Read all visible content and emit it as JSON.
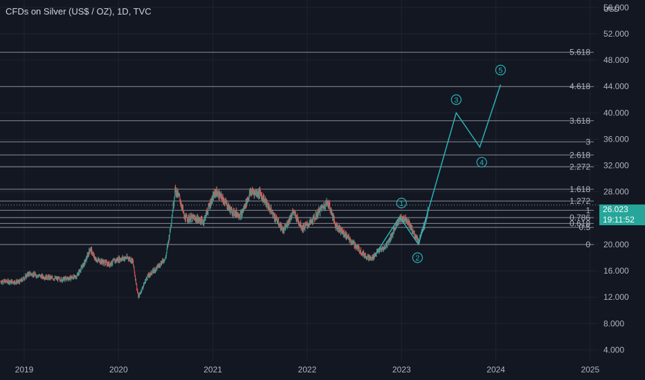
{
  "header": {
    "symbol_title": "CFDs on Silver (US$ / OZ), 1D, TVC",
    "currency": "USD"
  },
  "last_price": {
    "price": "26.023",
    "countdown": "19:11:52"
  },
  "colors": {
    "background": "#131722",
    "grid": "#1f2430",
    "fib_line": "#b2b5be",
    "wave": "#2ab3b8",
    "candle_up": "#26a69a",
    "candle_down": "#ef5350",
    "price_tag": "#26a69a"
  },
  "chart_data": {
    "type": "candlestick",
    "title": "CFDs on Silver (US$ / OZ), 1D, TVC",
    "ylabel": "USD",
    "ylim": [
      2.8,
      58.4
    ],
    "xlim": [
      2018.75,
      2025.1
    ],
    "x_ticks": [
      "2019",
      "2020",
      "2021",
      "2022",
      "2023",
      "2024",
      "2025"
    ],
    "y_ticks": [
      "4.000",
      "8.000",
      "12.000",
      "16.000",
      "20.000",
      "24.000",
      "28.000",
      "32.000",
      "36.000",
      "40.000",
      "44.000",
      "48.000",
      "52.000",
      "56.000"
    ],
    "y_tick_values": [
      4,
      8,
      12,
      16,
      20,
      24,
      28,
      32,
      36,
      40,
      44,
      48,
      52,
      56
    ],
    "price_path": [
      [
        2018.75,
        14.4
      ],
      [
        2018.95,
        14.3
      ],
      [
        2019.05,
        15.6
      ],
      [
        2019.2,
        15.1
      ],
      [
        2019.4,
        14.7
      ],
      [
        2019.55,
        15.1
      ],
      [
        2019.65,
        17.5
      ],
      [
        2019.7,
        19.4
      ],
      [
        2019.75,
        17.8
      ],
      [
        2019.9,
        17.0
      ],
      [
        2020.0,
        17.8
      ],
      [
        2020.1,
        18.0
      ],
      [
        2020.15,
        17.5
      ],
      [
        2020.21,
        12.0
      ],
      [
        2020.3,
        15.0
      ],
      [
        2020.4,
        16.4
      ],
      [
        2020.5,
        18.0
      ],
      [
        2020.55,
        22.5
      ],
      [
        2020.6,
        28.3
      ],
      [
        2020.65,
        27.0
      ],
      [
        2020.7,
        24.0
      ],
      [
        2020.8,
        24.0
      ],
      [
        2020.9,
        23.5
      ],
      [
        2020.97,
        26.2
      ],
      [
        2021.03,
        28.0
      ],
      [
        2021.1,
        27.0
      ],
      [
        2021.2,
        25.0
      ],
      [
        2021.3,
        24.5
      ],
      [
        2021.4,
        28.0
      ],
      [
        2021.5,
        27.8
      ],
      [
        2021.6,
        25.5
      ],
      [
        2021.75,
        22.0
      ],
      [
        2021.85,
        25.0
      ],
      [
        2021.95,
        22.5
      ],
      [
        2022.05,
        23.5
      ],
      [
        2022.15,
        25.5
      ],
      [
        2022.22,
        26.5
      ],
      [
        2022.3,
        23.0
      ],
      [
        2022.4,
        21.5
      ],
      [
        2022.5,
        20.0
      ],
      [
        2022.6,
        18.5
      ],
      [
        2022.68,
        17.8
      ],
      [
        2022.75,
        19.0
      ],
      [
        2022.82,
        19.5
      ],
      [
        2022.9,
        21.5
      ],
      [
        2022.97,
        23.8
      ],
      [
        2023.05,
        24.0
      ],
      [
        2023.12,
        22.0
      ],
      [
        2023.18,
        20.5
      ],
      [
        2023.22,
        22.0
      ],
      [
        2023.28,
        25.0
      ]
    ],
    "fib_levels": [
      {
        "label": "0",
        "value": 20.0
      },
      {
        "label": "0.5",
        "value": 22.6
      },
      {
        "label": "0.618",
        "value": 23.2
      },
      {
        "label": "0.786",
        "value": 24.1
      },
      {
        "label": "1",
        "value": 25.2
      },
      {
        "label": "1.272",
        "value": 26.6
      },
      {
        "label": "1.618",
        "value": 28.4
      },
      {
        "label": "2.272",
        "value": 31.8
      },
      {
        "label": "2.618",
        "value": 33.6
      },
      {
        "label": "3",
        "value": 35.6
      },
      {
        "label": "3.618",
        "value": 38.8
      },
      {
        "label": "4.618",
        "value": 44.0
      },
      {
        "label": "5.618",
        "value": 49.2
      }
    ],
    "wave_path": [
      [
        2022.7,
        18.0
      ],
      [
        2022.98,
        24.2
      ],
      [
        2023.18,
        20.0
      ],
      [
        2023.58,
        40.0
      ],
      [
        2023.83,
        34.8
      ],
      [
        2024.05,
        44.3
      ]
    ],
    "wave_labels": [
      {
        "label": "1",
        "x": 2023.0,
        "y": 26.3
      },
      {
        "label": "2",
        "x": 2023.17,
        "y": 18.0
      },
      {
        "label": "3",
        "x": 2023.58,
        "y": 42.0
      },
      {
        "label": "4",
        "x": 2023.85,
        "y": 32.5
      },
      {
        "label": "5",
        "x": 2024.05,
        "y": 46.5
      }
    ]
  }
}
